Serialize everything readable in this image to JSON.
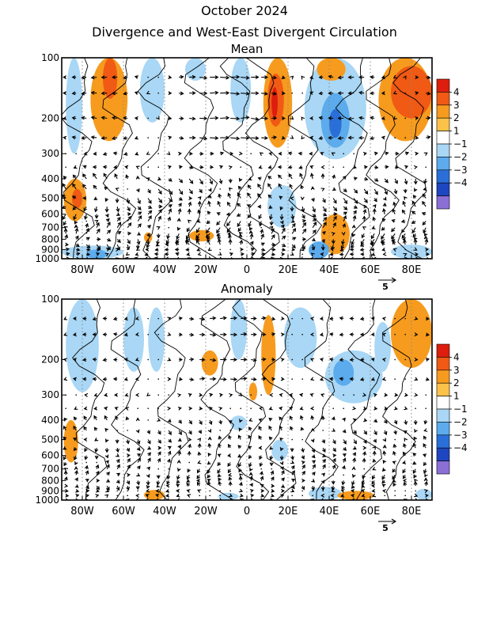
{
  "title": "October 2024",
  "subtitle": "Divergence and West-East Divergent Circulation",
  "colorbar": {
    "labels": [
      "4",
      "3",
      "2",
      "1",
      "−1",
      "−2",
      "−3",
      "−4"
    ],
    "colors": [
      "#dd1e0f",
      "#f05a14",
      "#f79b1e",
      "#fbc24a",
      "#ffffff",
      "#a9d7f5",
      "#5cabec",
      "#2a6fd8",
      "#1e46c0",
      "#8a6fd6"
    ]
  },
  "chart_data": [
    {
      "type": "heatmap",
      "title": "Mean",
      "x_ticks": [
        "80W",
        "60W",
        "40W",
        "20W",
        "0",
        "20E",
        "40E",
        "60E",
        "80E"
      ],
      "x_values": [
        -80,
        -60,
        -40,
        -20,
        0,
        20,
        40,
        60,
        80
      ],
      "xlim": [
        -90,
        90
      ],
      "y_ticks": [
        "100",
        "200",
        "300",
        "400",
        "500",
        "600",
        "700",
        "800",
        "900",
        "1000"
      ],
      "y_values": [
        100,
        200,
        300,
        400,
        500,
        600,
        700,
        800,
        900,
        1000
      ],
      "ylim": [
        1000,
        100
      ],
      "y_scale": "log-pressure",
      "vector_reference": "5",
      "regions": [
        {
          "lon": [
            -88,
            -80
          ],
          "p": [
            100,
            300
          ],
          "level": -1
        },
        {
          "lon": [
            -76,
            -58
          ],
          "p": [
            100,
            260
          ],
          "level": 2
        },
        {
          "lon": [
            -70,
            -63
          ],
          "p": [
            100,
            160
          ],
          "level": 3
        },
        {
          "lon": [
            -52,
            -40
          ],
          "p": [
            100,
            210
          ],
          "level": -1
        },
        {
          "lon": [
            -30,
            -20
          ],
          "p": [
            100,
            130
          ],
          "level": -1
        },
        {
          "lon": [
            -8,
            2
          ],
          "p": [
            100,
            210
          ],
          "level": -1
        },
        {
          "lon": [
            8,
            22
          ],
          "p": [
            100,
            280
          ],
          "level": 2
        },
        {
          "lon": [
            10,
            18
          ],
          "p": [
            120,
            220
          ],
          "level": 3
        },
        {
          "lon": [
            12,
            15
          ],
          "p": [
            140,
            200
          ],
          "level": 4
        },
        {
          "lon": [
            28,
            58
          ],
          "p": [
            100,
            320
          ],
          "level": -1
        },
        {
          "lon": [
            36,
            50
          ],
          "p": [
            150,
            280
          ],
          "level": -2
        },
        {
          "lon": [
            40,
            46
          ],
          "p": [
            180,
            250
          ],
          "level": -3
        },
        {
          "lon": [
            34,
            48
          ],
          "p": [
            100,
            130
          ],
          "level": 2
        },
        {
          "lon": [
            64,
            90
          ],
          "p": [
            100,
            260
          ],
          "level": 2
        },
        {
          "lon": [
            70,
            90
          ],
          "p": [
            110,
            200
          ],
          "level": 3
        },
        {
          "lon": [
            -89,
            -78
          ],
          "p": [
            400,
            650
          ],
          "level": 2
        },
        {
          "lon": [
            -85,
            -80
          ],
          "p": [
            450,
            560
          ],
          "level": 3
        },
        {
          "lon": [
            10,
            24
          ],
          "p": [
            430,
            700
          ],
          "level": -1
        },
        {
          "lon": [
            36,
            50
          ],
          "p": [
            600,
            950
          ],
          "level": 2
        },
        {
          "lon": [
            -90,
            -60
          ],
          "p": [
            860,
            1000
          ],
          "level": -1
        },
        {
          "lon": [
            -78,
            -68
          ],
          "p": [
            900,
            1000
          ],
          "level": -2
        },
        {
          "lon": [
            -50,
            -46
          ],
          "p": [
            740,
            830
          ],
          "level": 2
        },
        {
          "lon": [
            -28,
            -16
          ],
          "p": [
            720,
            820
          ],
          "level": 2
        },
        {
          "lon": [
            30,
            40
          ],
          "p": [
            820,
            1000
          ],
          "level": -2
        },
        {
          "lon": [
            70,
            90
          ],
          "p": [
            850,
            1000
          ],
          "level": -1
        }
      ]
    },
    {
      "type": "heatmap",
      "title": "Anomaly",
      "x_ticks": [
        "80W",
        "60W",
        "40W",
        "20W",
        "0",
        "20E",
        "40E",
        "60E",
        "80E"
      ],
      "x_values": [
        -80,
        -60,
        -40,
        -20,
        0,
        20,
        40,
        60,
        80
      ],
      "xlim": [
        -90,
        90
      ],
      "y_ticks": [
        "100",
        "200",
        "300",
        "400",
        "500",
        "600",
        "700",
        "800",
        "900",
        "1000"
      ],
      "y_values": [
        100,
        200,
        300,
        400,
        500,
        600,
        700,
        800,
        900,
        1000
      ],
      "ylim": [
        1000,
        100
      ],
      "y_scale": "log-pressure",
      "vector_reference": "5",
      "regions": [
        {
          "lon": [
            -88,
            -72
          ],
          "p": [
            100,
            290
          ],
          "level": -1
        },
        {
          "lon": [
            -60,
            -50
          ],
          "p": [
            110,
            230
          ],
          "level": -1
        },
        {
          "lon": [
            -48,
            -40
          ],
          "p": [
            110,
            230
          ],
          "level": -1
        },
        {
          "lon": [
            -22,
            -14
          ],
          "p": [
            180,
            240
          ],
          "level": 2
        },
        {
          "lon": [
            -8,
            0
          ],
          "p": [
            100,
            200
          ],
          "level": -1
        },
        {
          "lon": [
            7,
            14
          ],
          "p": [
            120,
            300
          ],
          "level": 2
        },
        {
          "lon": [
            1,
            5
          ],
          "p": [
            260,
            320
          ],
          "level": 2
        },
        {
          "lon": [
            18,
            34
          ],
          "p": [
            110,
            220
          ],
          "level": -1
        },
        {
          "lon": [
            38,
            66
          ],
          "p": [
            180,
            330
          ],
          "level": -1
        },
        {
          "lon": [
            42,
            52
          ],
          "p": [
            200,
            270
          ],
          "level": -2
        },
        {
          "lon": [
            70,
            90
          ],
          "p": [
            100,
            220
          ],
          "level": 2
        },
        {
          "lon": [
            62,
            70
          ],
          "p": [
            130,
            230
          ],
          "level": -1
        },
        {
          "lon": [
            -89,
            -82
          ],
          "p": [
            400,
            650
          ],
          "level": 2
        },
        {
          "lon": [
            -8,
            0
          ],
          "p": [
            380,
            450
          ],
          "level": -1
        },
        {
          "lon": [
            12,
            20
          ],
          "p": [
            500,
            640
          ],
          "level": -1
        },
        {
          "lon": [
            -50,
            -40
          ],
          "p": [
            890,
            1000
          ],
          "level": 2
        },
        {
          "lon": [
            -14,
            -4
          ],
          "p": [
            920,
            1000
          ],
          "level": -1
        },
        {
          "lon": [
            30,
            46
          ],
          "p": [
            860,
            1000
          ],
          "level": -1
        },
        {
          "lon": [
            44,
            62
          ],
          "p": [
            900,
            1000
          ],
          "level": 2
        },
        {
          "lon": [
            82,
            90
          ],
          "p": [
            880,
            1000
          ],
          "level": -1
        }
      ]
    }
  ]
}
